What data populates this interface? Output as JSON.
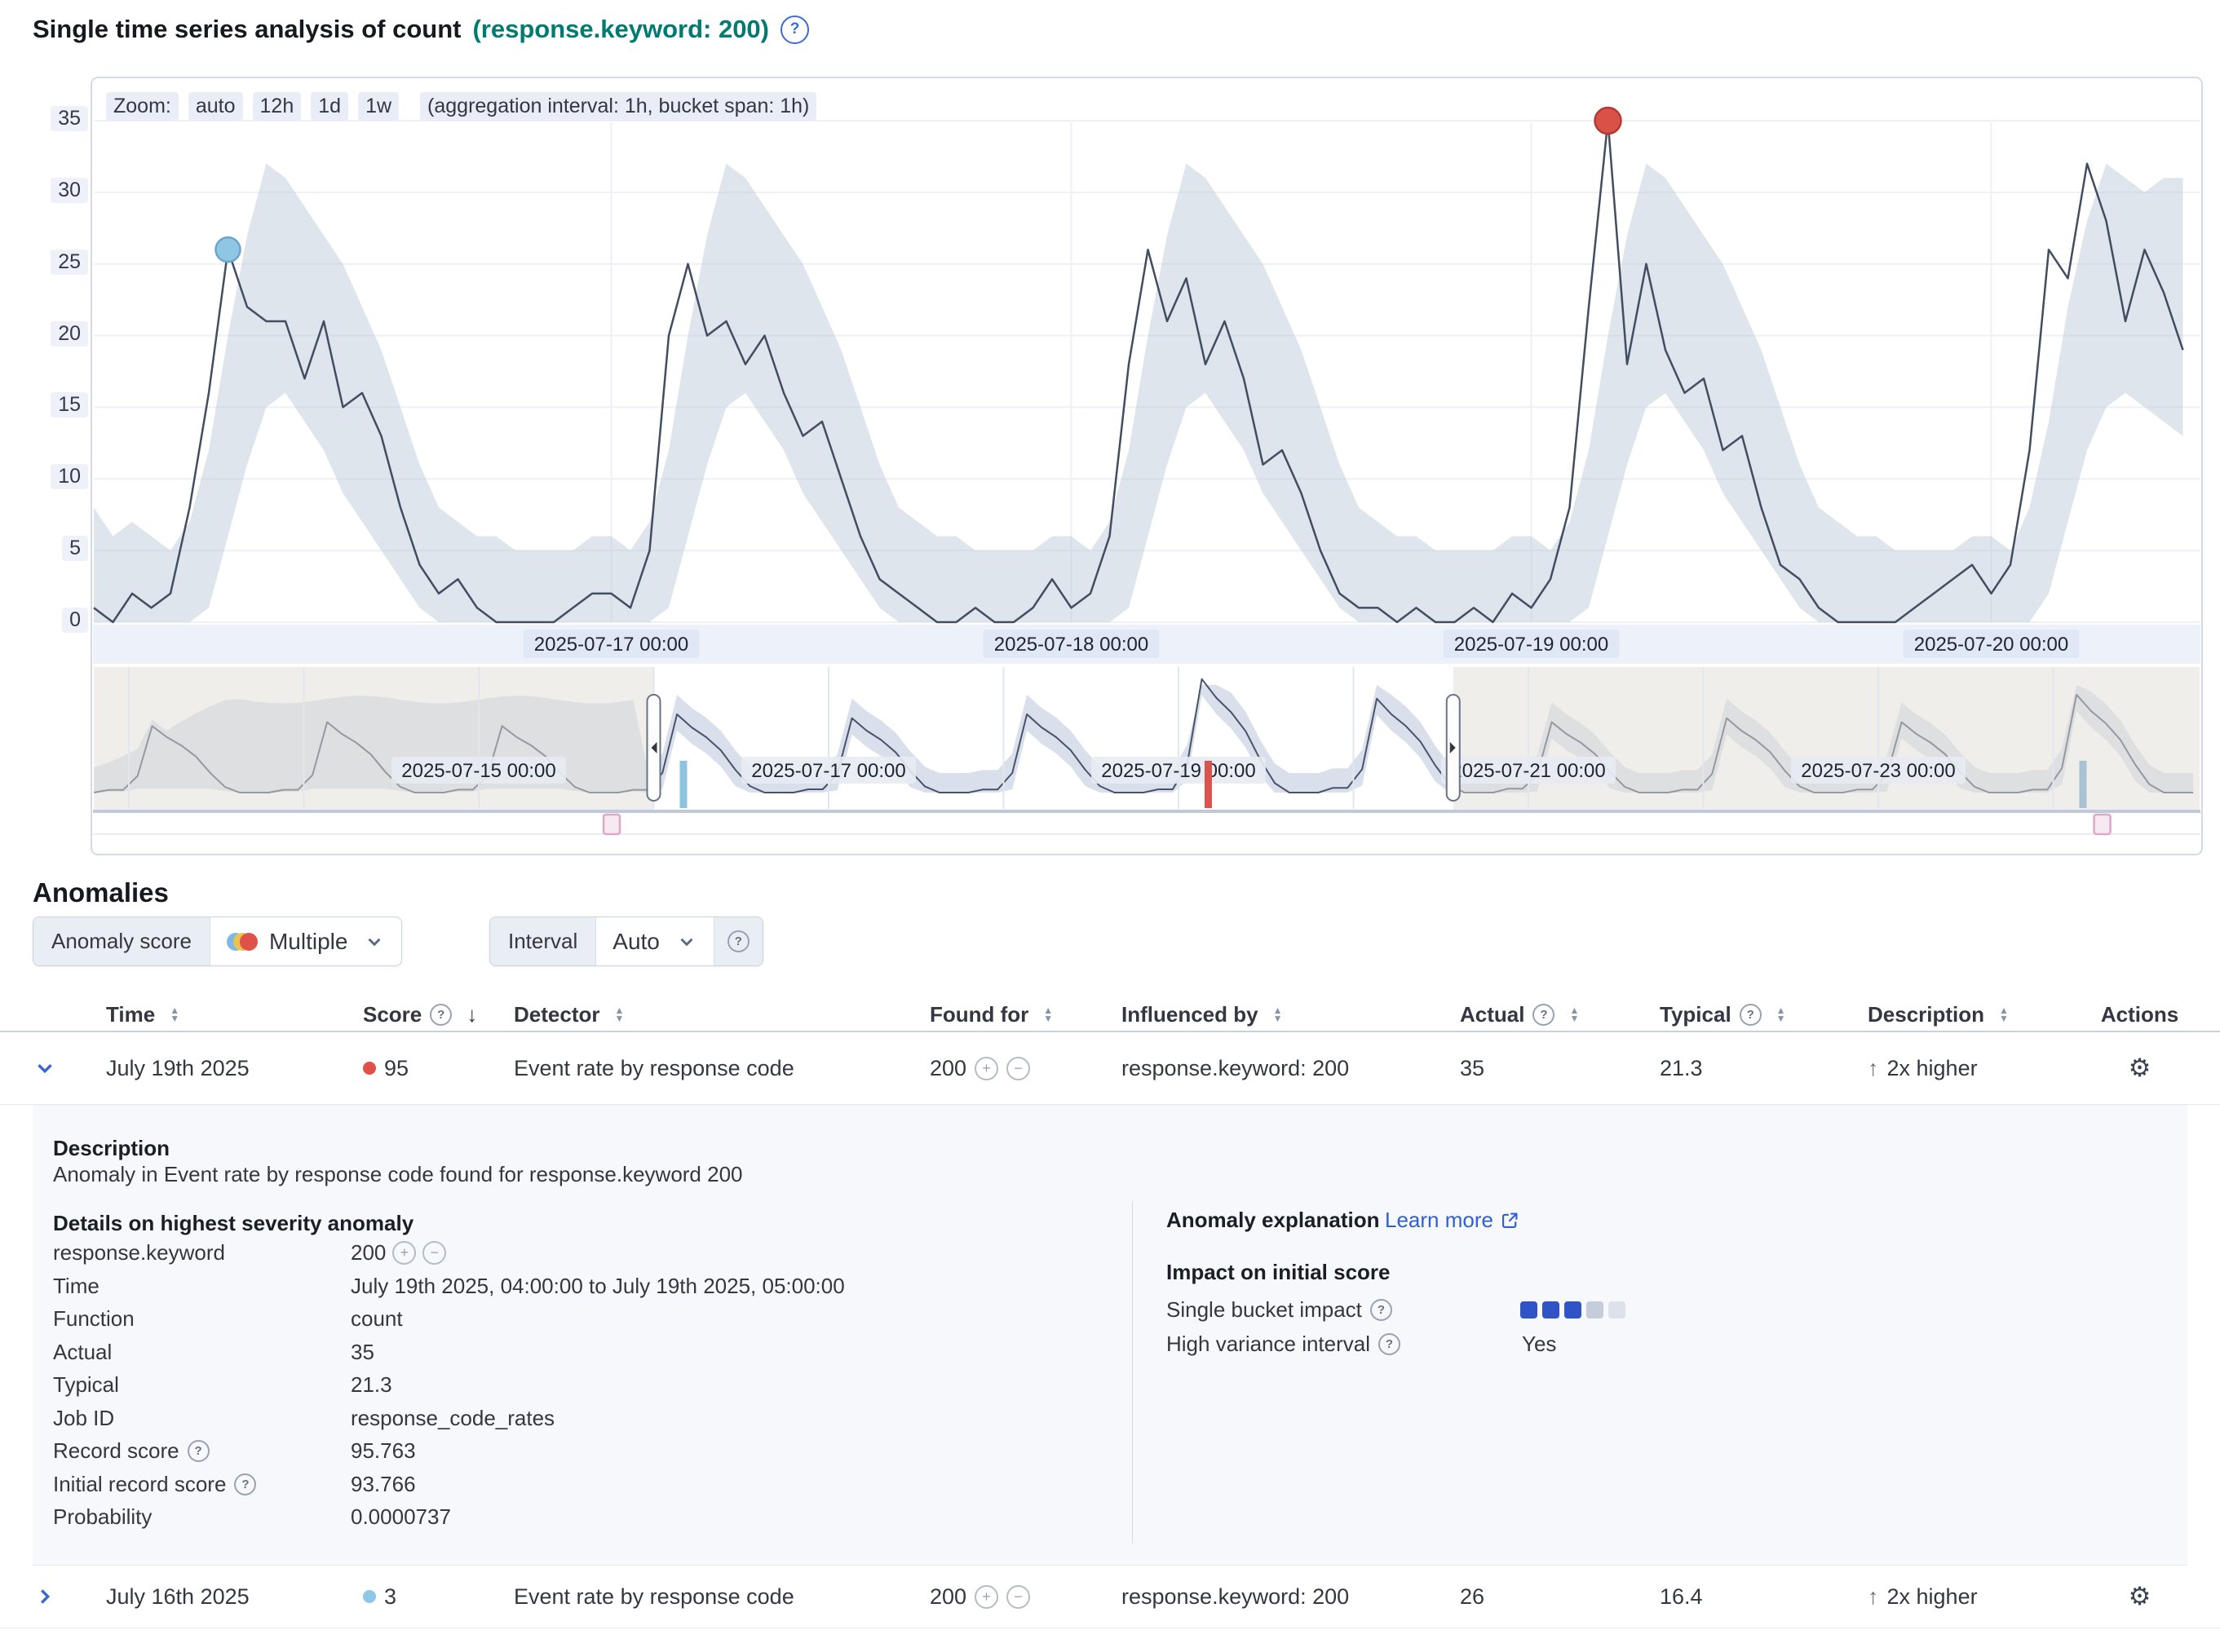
{
  "colors": {
    "accent_link_blue": "#2e5fd4",
    "entity_teal": "#017a70",
    "critical_red": "#e0514a",
    "warning_blue": "#8fc7e8"
  },
  "header": {
    "title": "Single time series analysis of count",
    "entity": "(response.keyword: 200)"
  },
  "chart_data": {
    "type": "line",
    "title": "Single time series analysis of count (response.keyword: 200)",
    "zoom": {
      "label": "Zoom:",
      "options": [
        "auto",
        "12h",
        "1d",
        "1w"
      ],
      "aggregation": "(aggregation interval: 1h, bucket span: 1h)"
    },
    "ylim": [
      0,
      35
    ],
    "y_ticks": [
      0,
      5,
      10,
      15,
      20,
      25,
      30,
      35
    ],
    "x_ticks": [
      {
        "label": "2025-07-17 00:00",
        "hour": 27
      },
      {
        "label": "2025-07-18 00:00",
        "hour": 51
      },
      {
        "label": "2025-07-19 00:00",
        "hour": 75
      },
      {
        "label": "2025-07-20 00:00",
        "hour": 99
      }
    ],
    "main": {
      "start": "2025-07-15 21:00",
      "interval": "1h",
      "values": [
        1,
        0,
        2,
        1,
        2,
        8,
        16,
        26,
        22,
        21,
        21,
        17,
        21,
        15,
        16,
        13,
        8,
        4,
        2,
        3,
        1,
        0,
        0,
        0,
        0,
        1,
        2,
        2,
        1,
        5,
        20,
        25,
        20,
        21,
        18,
        20,
        16,
        13,
        14,
        10,
        6,
        3,
        2,
        1,
        0,
        0,
        1,
        0,
        0,
        1,
        3,
        1,
        2,
        6,
        18,
        26,
        21,
        24,
        18,
        21,
        17,
        11,
        12,
        9,
        5,
        2,
        1,
        1,
        0,
        1,
        0,
        0,
        1,
        0,
        2,
        1,
        3,
        8,
        22,
        35,
        18,
        25,
        19,
        16,
        17,
        12,
        13,
        8,
        4,
        3,
        1,
        0,
        0,
        0,
        0,
        1,
        2,
        3,
        4,
        2,
        4,
        12,
        26,
        24,
        32,
        28,
        21,
        26,
        23,
        19
      ],
      "upper": [
        8,
        6,
        7,
        6,
        5,
        7,
        12,
        20,
        27,
        32,
        31,
        29,
        27,
        25,
        22,
        19,
        15,
        11,
        8,
        7,
        6,
        6,
        5,
        5,
        5,
        5,
        6,
        6,
        5,
        7,
        12,
        20,
        27,
        32,
        31,
        29,
        27,
        25,
        22,
        19,
        15,
        11,
        8,
        7,
        6,
        6,
        5,
        5,
        5,
        5,
        6,
        6,
        5,
        7,
        12,
        20,
        27,
        32,
        31,
        29,
        27,
        25,
        22,
        19,
        15,
        11,
        8,
        7,
        6,
        6,
        5,
        5,
        5,
        5,
        6,
        6,
        5,
        7,
        12,
        20,
        27,
        32,
        31,
        29,
        27,
        25,
        22,
        19,
        15,
        11,
        8,
        7,
        6,
        6,
        5,
        5,
        5,
        5,
        6,
        6,
        5,
        8,
        14,
        22,
        28,
        32,
        31,
        30,
        31,
        31
      ],
      "lower": [
        0,
        0,
        0,
        0,
        0,
        0,
        1,
        6,
        11,
        15,
        16,
        14,
        12,
        9,
        7,
        5,
        3,
        1,
        0,
        0,
        0,
        0,
        0,
        0,
        0,
        0,
        0,
        0,
        0,
        0,
        1,
        6,
        11,
        15,
        16,
        14,
        12,
        9,
        7,
        5,
        3,
        1,
        0,
        0,
        0,
        0,
        0,
        0,
        0,
        0,
        0,
        0,
        0,
        0,
        1,
        6,
        11,
        15,
        16,
        14,
        12,
        9,
        7,
        5,
        3,
        1,
        0,
        0,
        0,
        0,
        0,
        0,
        0,
        0,
        0,
        0,
        0,
        0,
        1,
        6,
        11,
        15,
        16,
        14,
        12,
        9,
        7,
        5,
        3,
        1,
        0,
        0,
        0,
        0,
        0,
        0,
        0,
        0,
        0,
        0,
        0,
        0,
        2,
        7,
        12,
        15,
        16,
        15,
        14,
        13
      ],
      "markers": [
        {
          "index": 7,
          "value": 26,
          "severity": "warning",
          "time": "2025-07-16 04:00"
        },
        {
          "index": 79,
          "value": 35,
          "severity": "critical",
          "time": "2025-07-19 04:00"
        }
      ]
    },
    "context": {
      "labels": [
        {
          "label": "2025-07-15 00:00",
          "day": 0
        },
        {
          "label": "2025-07-17 00:00",
          "day": 2
        },
        {
          "label": "2025-07-19 00:00",
          "day": 4
        },
        {
          "label": "2025-07-21 00:00",
          "day": 6
        },
        {
          "label": "2025-07-23 00:00",
          "day": 8
        }
      ],
      "template_2h": [
        1,
        6,
        24,
        20,
        17,
        13,
        7,
        2,
        0,
        0,
        0,
        1
      ],
      "day_amplitudes": [
        0.8,
        0.85,
        0.9,
        0.85,
        1.0,
        0.95,
        1.0,
        1.45,
        1.2,
        0.9,
        0.95,
        0.9,
        1.25
      ],
      "first_day_offset": -3,
      "brush": {
        "start_day": 1.0,
        "end_day": 5.57
      },
      "swimlane_ticks": [
        {
          "day": 1.17,
          "color": "#8fc2dc"
        },
        {
          "day": 4.17,
          "color": "#d9544c"
        },
        {
          "day": 9.17,
          "color": "#a9c3d2"
        }
      ],
      "annotations": [
        {
          "day": 0.76
        },
        {
          "day": 9.28
        }
      ]
    },
    "colors": {
      "line": "#424d61",
      "band": "#b9c5d8",
      "grid": "#edf0f6",
      "axis_strip": "#ecf1fa",
      "axis_label_bg": "#dee6f4",
      "ctx_line": "#47536b",
      "ctx_band": "#b6c2d8",
      "mask": "rgba(224,221,216,0.5)",
      "baseline": "#bfc9db",
      "warning": "#8ec6e4",
      "warning_border": "#6ba6c9",
      "critical": "#d95147",
      "critical_border": "#b23a31",
      "annotation_fill": "#f7e9f1",
      "annotation_border": "#dca8c8"
    }
  },
  "anomalies": {
    "heading": "Anomalies",
    "filters": {
      "score_label": "Anomaly score",
      "score_value": "Multiple",
      "interval_label": "Interval",
      "interval_value": "Auto"
    },
    "table": {
      "headers": {
        "time": "Time",
        "score": "Score",
        "detector": "Detector",
        "found_for": "Found for",
        "influenced_by": "Influenced by",
        "actual": "Actual",
        "typical": "Typical",
        "description": "Description",
        "actions": "Actions"
      },
      "rows": [
        {
          "time": "July 19th 2025",
          "score": "95",
          "detector": "Event rate by response code",
          "found_for": "200",
          "influenced_by": "response.keyword: 200",
          "actual": "35",
          "typical": "21.3",
          "description": "2x higher"
        },
        {
          "time": "July 16th 2025",
          "score": "3",
          "detector": "Event rate by response code",
          "found_for": "200",
          "influenced_by": "response.keyword: 200",
          "actual": "26",
          "typical": "16.4",
          "description": "2x higher"
        }
      ]
    },
    "expanded": {
      "description_title": "Description",
      "description_text": "Anomaly in Event rate by response code found for response.keyword 200",
      "details_title": "Details on highest severity anomaly",
      "details": [
        {
          "label": "response.keyword",
          "value": "200"
        },
        {
          "label": "Time",
          "value": "July 19th 2025, 04:00:00 to July 19th 2025, 05:00:00"
        },
        {
          "label": "Function",
          "value": "count"
        },
        {
          "label": "Actual",
          "value": "35"
        },
        {
          "label": "Typical",
          "value": "21.3"
        },
        {
          "label": "Job ID",
          "value": "response_code_rates"
        },
        {
          "label": "Record score",
          "value": "95.763"
        },
        {
          "label": "Initial record score",
          "value": "93.766"
        },
        {
          "label": "Probability",
          "value": "0.0000737"
        }
      ],
      "explanation_title": "Anomaly explanation",
      "learn_more": "Learn more",
      "impact_title": "Impact on initial score",
      "single_bucket_label": "Single bucket impact",
      "high_variance_label": "High variance interval",
      "high_variance_value": "Yes",
      "impact_squares": [
        "#3053c6",
        "#3053c6",
        "#3053c6",
        "#c6cdda",
        "#dde1ea"
      ]
    }
  }
}
